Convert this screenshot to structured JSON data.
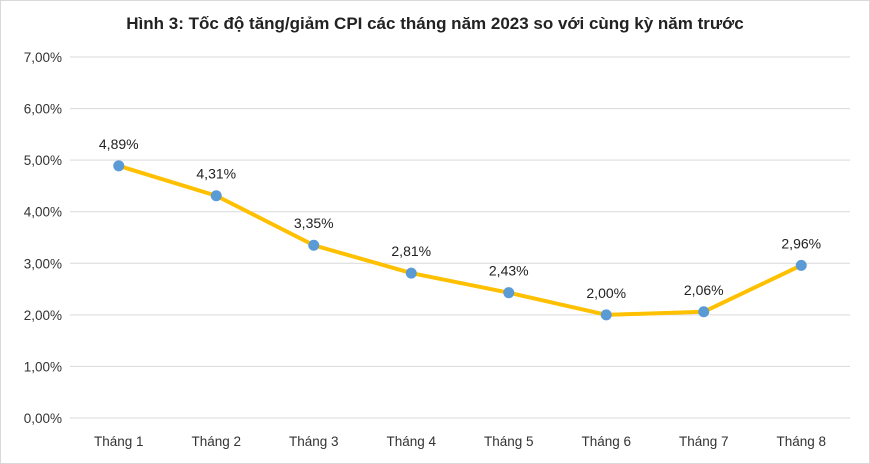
{
  "chart_data": {
    "type": "line",
    "title": "Hình 3: Tốc độ tăng/giảm CPI các tháng năm 2023 so với cùng kỳ năm trước",
    "categories": [
      "Tháng 1",
      "Tháng 2",
      "Tháng 3",
      "Tháng 4",
      "Tháng 5",
      "Tháng 6",
      "Tháng 7",
      "Tháng 8"
    ],
    "series": [
      {
        "values": [
          4.89,
          4.31,
          3.35,
          2.81,
          2.43,
          2.0,
          2.06,
          2.96
        ],
        "labels": [
          "4,89%",
          "4,31%",
          "3,35%",
          "2,81%",
          "2,43%",
          "2,00%",
          "2,06%",
          "2,96%"
        ],
        "line_color": "#FFC000",
        "marker_color": "#5B9BD5"
      }
    ],
    "ylim": [
      0,
      7
    ],
    "yticks": [
      "0,00%",
      "1,00%",
      "2,00%",
      "3,00%",
      "4,00%",
      "5,00%",
      "6,00%",
      "7,00%"
    ],
    "grid": true,
    "gridline_color": "#d9d9d9"
  }
}
